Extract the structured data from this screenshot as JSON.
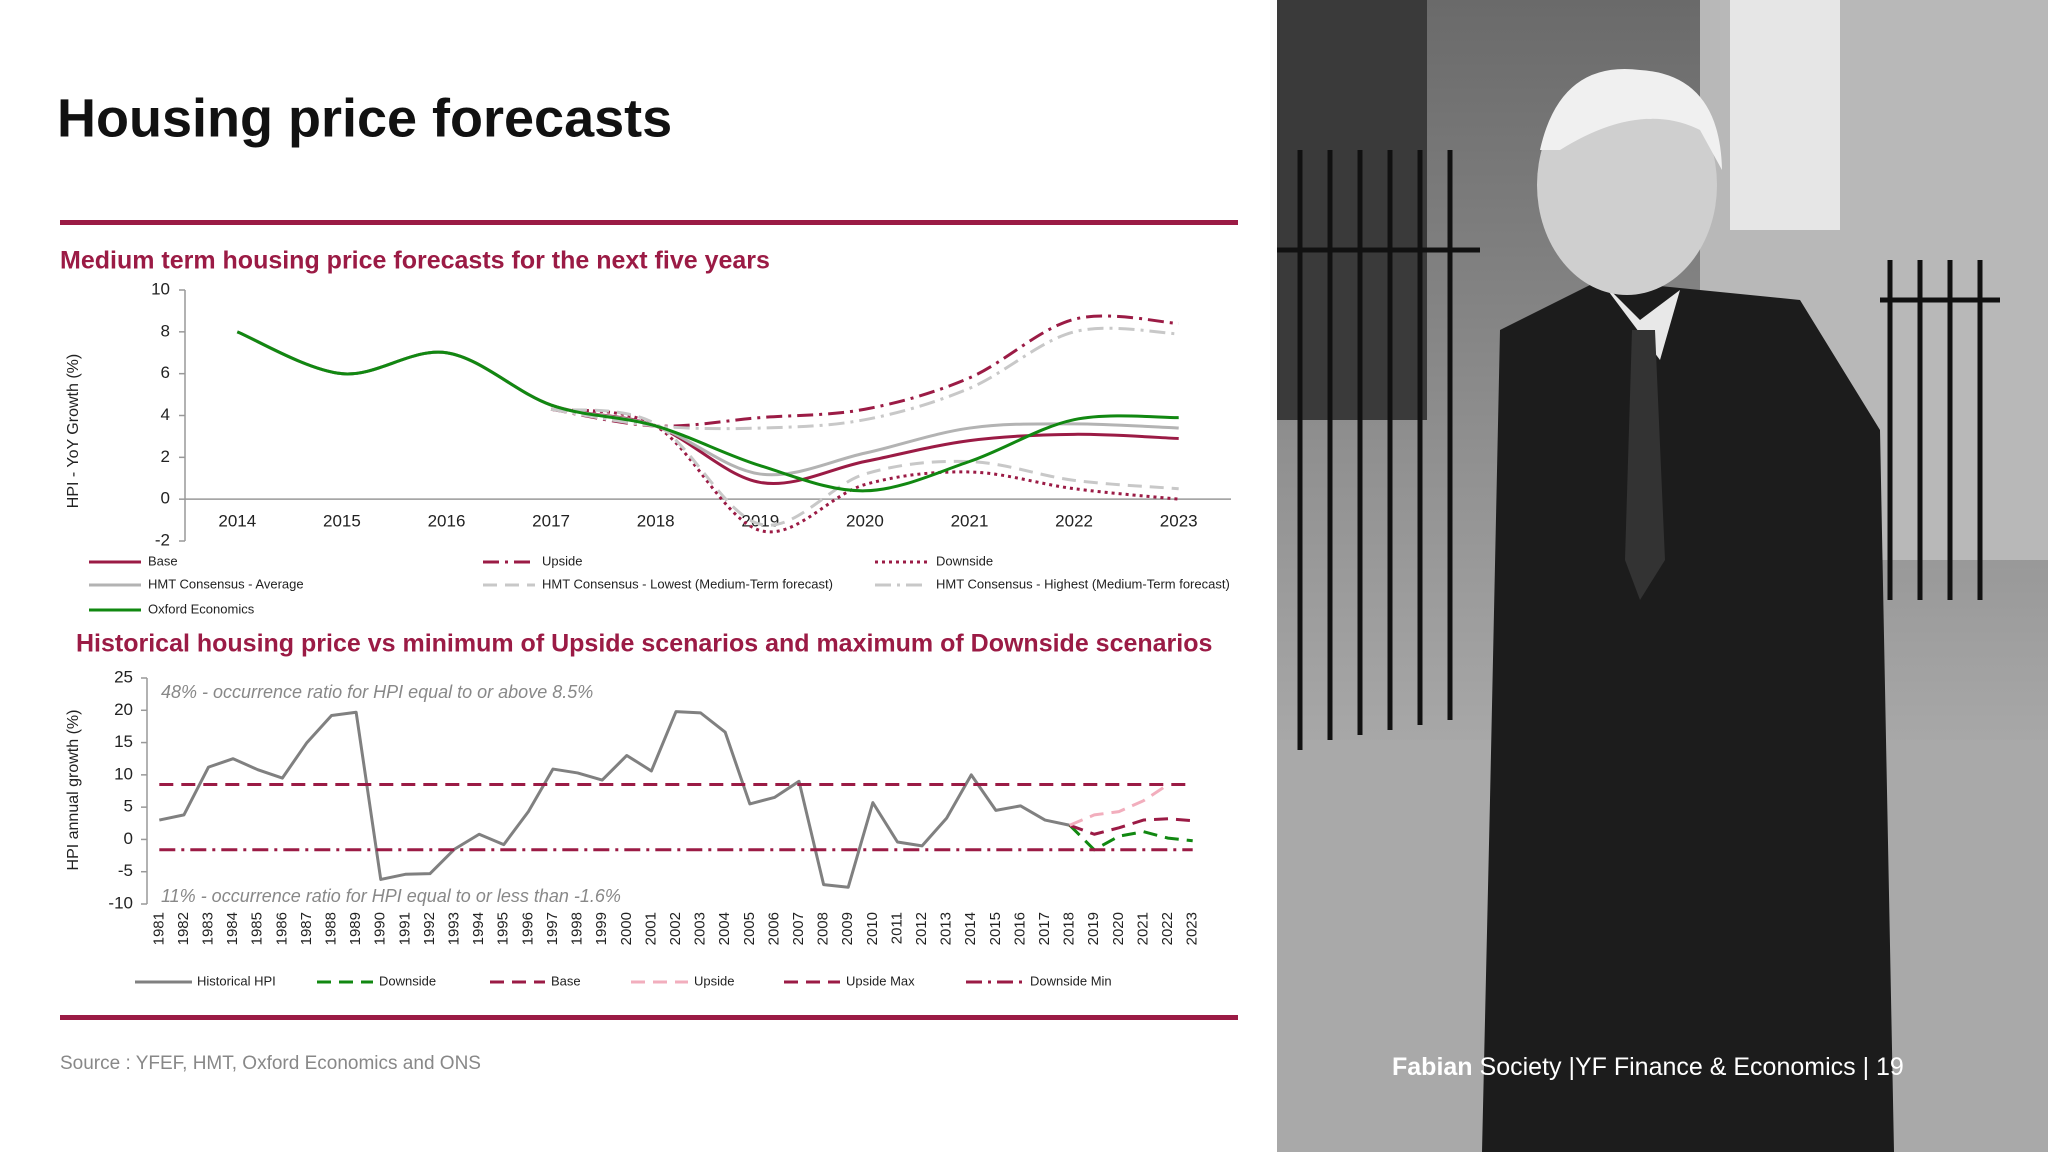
{
  "title": "Housing price forecasts",
  "source": "Source : YFEF, HMT, Oxford Economics and ONS",
  "footer": {
    "org_bold": "Fabian",
    "org": "Society",
    "text": "|YF Finance & Economics |",
    "page": 19
  },
  "chart_data": [
    {
      "type": "line",
      "title": "Medium term housing price forecasts for the next five years",
      "y_label": "HPI - YoY Growth (%)",
      "smooth": true,
      "categories": [
        "2014",
        "2015",
        "2016",
        "2017",
        "2018",
        "2019",
        "2020",
        "2021",
        "2022",
        "2023"
      ],
      "ylim": [
        -2,
        10
      ],
      "yticks": [
        -2,
        0,
        2,
        4,
        6,
        8,
        10
      ],
      "series": [
        {
          "name": "Base",
          "color": "#9b1b45",
          "dash": "solid",
          "values": [
            8,
            6,
            7,
            4.5,
            3.5,
            0.8,
            1.8,
            2.8,
            3.1,
            2.9
          ]
        },
        {
          "name": "Upside",
          "color": "#9b1b45",
          "dash": "dashdot",
          "values": [
            null,
            null,
            null,
            4.3,
            3.5,
            3.9,
            4.3,
            5.8,
            8.6,
            8.4
          ]
        },
        {
          "name": "Downside",
          "color": "#9b1b45",
          "dash": "dotted",
          "values": [
            null,
            null,
            null,
            4.3,
            3.5,
            -1.5,
            0.7,
            1.3,
            0.5,
            0
          ]
        },
        {
          "name": "HMT Consensus - Average",
          "color": "#b3b3b3",
          "dash": "solid",
          "values": [
            8,
            6,
            7,
            4.5,
            3.5,
            1.2,
            2.2,
            3.4,
            3.6,
            3.4
          ]
        },
        {
          "name": "HMT Consensus - Lowest (Medium-Term forecast)",
          "color": "#c8c8c8",
          "dash": "dashed",
          "values": [
            null,
            null,
            null,
            4.3,
            3.6,
            -1.2,
            1.2,
            1.8,
            0.9,
            0.5
          ]
        },
        {
          "name": "HMT Consensus - Highest (Medium-Term forecast)",
          "color": "#c8c8c8",
          "dash": "dashdot",
          "values": [
            null,
            null,
            null,
            4.3,
            3.5,
            3.4,
            3.8,
            5.3,
            8,
            7.9
          ]
        },
        {
          "name": "Oxford Economics",
          "color": "#118811",
          "dash": "solid",
          "values": [
            8,
            6,
            7,
            4.5,
            3.5,
            1.6,
            0.4,
            1.8,
            3.8,
            3.9
          ]
        }
      ]
    },
    {
      "type": "line",
      "title": "Historical housing price vs minimum of Upside scenarios and maximum of Downside scenarios",
      "y_label": "HPI annual growth  (%)",
      "smooth": false,
      "annotations": [
        "48%  -  occurrence ratio for HPI equal to or above 8.5%",
        "11% -  occurrence ratio for HPI equal to or less than -1.6%"
      ],
      "categories": [
        "1981",
        "1982",
        "1983",
        "1984",
        "1985",
        "1986",
        "1987",
        "1988",
        "1989",
        "1990",
        "1991",
        "1992",
        "1993",
        "1994",
        "1995",
        "1996",
        "1997",
        "1998",
        "1999",
        "2000",
        "2001",
        "2002",
        "2003",
        "2004",
        "2005",
        "2006",
        "2007",
        "2008",
        "2009",
        "2010",
        "2011",
        "2012",
        "2013",
        "2014",
        "2015",
        "2016",
        "2017",
        "2018",
        "2019",
        "2020",
        "2021",
        "2022",
        "2023"
      ],
      "ylim": [
        -10,
        25
      ],
      "yticks": [
        -10,
        -5,
        0,
        5,
        10,
        15,
        20,
        25
      ],
      "series": [
        {
          "name": "Historical HPI",
          "color": "#808080",
          "dash": "solid",
          "values": [
            3,
            3.8,
            11.2,
            12.5,
            10.8,
            9.5,
            15,
            19.2,
            19.7,
            -6.2,
            -5.4,
            -5.3,
            -1.5,
            0.8,
            -0.8,
            4.3,
            10.9,
            10.3,
            9.2,
            13,
            10.6,
            19.8,
            19.6,
            16.6,
            5.5,
            6.5,
            9,
            -7,
            -7.4,
            5.7,
            -0.4,
            -1,
            3.3,
            10,
            4.5,
            5.2,
            3,
            2.2,
            null,
            null,
            null,
            null,
            null
          ]
        },
        {
          "name": "Downside",
          "color": "#118811",
          "dash": "dashed",
          "values": [
            null,
            null,
            null,
            null,
            null,
            null,
            null,
            null,
            null,
            null,
            null,
            null,
            null,
            null,
            null,
            null,
            null,
            null,
            null,
            null,
            null,
            null,
            null,
            null,
            null,
            null,
            null,
            null,
            null,
            null,
            null,
            null,
            null,
            null,
            null,
            null,
            null,
            2.2,
            -1.6,
            0.5,
            1.2,
            0.2,
            -0.2
          ]
        },
        {
          "name": "Base",
          "color": "#9b1b45",
          "dash": "dashed",
          "values": [
            null,
            null,
            null,
            null,
            null,
            null,
            null,
            null,
            null,
            null,
            null,
            null,
            null,
            null,
            null,
            null,
            null,
            null,
            null,
            null,
            null,
            null,
            null,
            null,
            null,
            null,
            null,
            null,
            null,
            null,
            null,
            null,
            null,
            null,
            null,
            null,
            null,
            2.2,
            0.8,
            1.8,
            3,
            3.2,
            2.9
          ]
        },
        {
          "name": "Upside",
          "color": "#f2aebd",
          "dash": "dashed",
          "values": [
            null,
            null,
            null,
            null,
            null,
            null,
            null,
            null,
            null,
            null,
            null,
            null,
            null,
            null,
            null,
            null,
            null,
            null,
            null,
            null,
            null,
            null,
            null,
            null,
            null,
            null,
            null,
            null,
            null,
            null,
            null,
            null,
            null,
            null,
            null,
            null,
            null,
            2.2,
            3.8,
            4.3,
            6,
            8.5,
            null
          ]
        },
        {
          "name": "Upside Max",
          "color": "#9b1b45",
          "dash": "dashed",
          "values": [
            8.5,
            8.5,
            8.5,
            8.5,
            8.5,
            8.5,
            8.5,
            8.5,
            8.5,
            8.5,
            8.5,
            8.5,
            8.5,
            8.5,
            8.5,
            8.5,
            8.5,
            8.5,
            8.5,
            8.5,
            8.5,
            8.5,
            8.5,
            8.5,
            8.5,
            8.5,
            8.5,
            8.5,
            8.5,
            8.5,
            8.5,
            8.5,
            8.5,
            8.5,
            8.5,
            8.5,
            8.5,
            8.5,
            8.5,
            8.5,
            8.5,
            8.5,
            8.5
          ]
        },
        {
          "name": "Downside Min",
          "color": "#9b1b45",
          "dash": "dashdot",
          "values": [
            -1.6,
            -1.6,
            -1.6,
            -1.6,
            -1.6,
            -1.6,
            -1.6,
            -1.6,
            -1.6,
            -1.6,
            -1.6,
            -1.6,
            -1.6,
            -1.6,
            -1.6,
            -1.6,
            -1.6,
            -1.6,
            -1.6,
            -1.6,
            -1.6,
            -1.6,
            -1.6,
            -1.6,
            -1.6,
            -1.6,
            -1.6,
            -1.6,
            -1.6,
            -1.6,
            -1.6,
            -1.6,
            -1.6,
            -1.6,
            -1.6,
            -1.6,
            -1.6,
            -1.6,
            -1.6,
            -1.6,
            -1.6,
            -1.6,
            -1.6
          ]
        }
      ]
    }
  ]
}
